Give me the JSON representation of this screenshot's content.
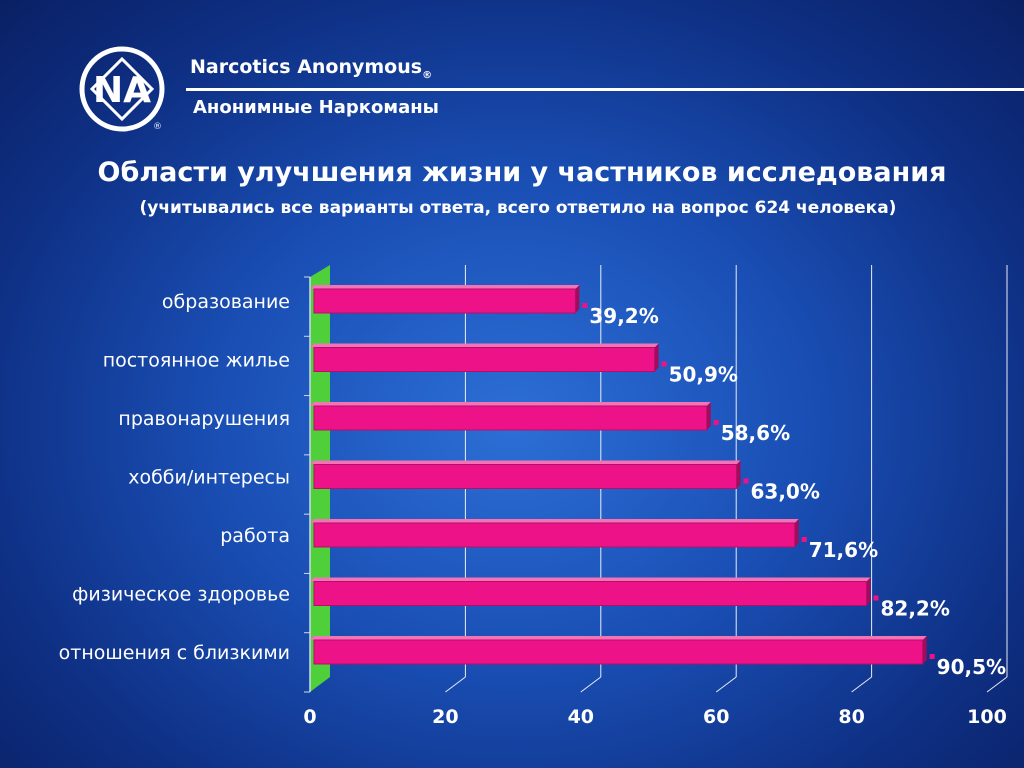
{
  "header": {
    "org_en": "Narcotics Anonymous",
    "reg_mark": "®",
    "org_ru": "Анонимные Наркоманы",
    "logo_text": "NA"
  },
  "title": "Области улучшения жизни у частников исследования",
  "subtitle": "(учитывались все варианты ответа, всего ответило на вопрос 624 человека)",
  "colors": {
    "bar_front": "#ee1289",
    "bar_top": "#f472b6",
    "bar_side": "#a10c5c",
    "wall": "#4fcf3a",
    "grid": "#ffffff"
  },
  "chart_data": {
    "type": "bar",
    "orientation": "horizontal",
    "categories": [
      "образование",
      "постоянное жилье",
      "правонарушения",
      "хобби/интересы",
      "работа",
      "физическое здоровье",
      "отношения с близкими"
    ],
    "values": [
      39.2,
      50.9,
      58.6,
      63.0,
      71.6,
      82.2,
      90.5
    ],
    "value_labels": [
      "39,2%",
      "50,9%",
      "58,6%",
      "63,0%",
      "71,6%",
      "82,2%",
      "90,5%"
    ],
    "xlim": [
      0,
      100
    ],
    "xticks": [
      0,
      20,
      40,
      60,
      80,
      100
    ],
    "grid": true,
    "legend": "none"
  }
}
